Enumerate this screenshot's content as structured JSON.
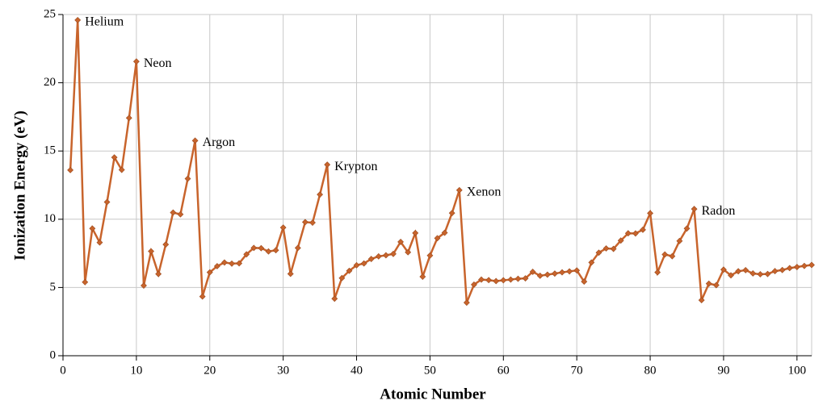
{
  "chart_data": {
    "type": "line",
    "xlabel": "Atomic Number",
    "ylabel": "Ionization Energy (eV)",
    "x": [
      1,
      2,
      3,
      4,
      5,
      6,
      7,
      8,
      9,
      10,
      11,
      12,
      13,
      14,
      15,
      16,
      17,
      18,
      19,
      20,
      21,
      22,
      23,
      24,
      25,
      26,
      27,
      28,
      29,
      30,
      31,
      32,
      33,
      34,
      35,
      36,
      37,
      38,
      39,
      40,
      41,
      42,
      43,
      44,
      45,
      46,
      47,
      48,
      49,
      50,
      51,
      52,
      53,
      54,
      55,
      56,
      57,
      58,
      59,
      60,
      61,
      62,
      63,
      64,
      65,
      66,
      67,
      68,
      69,
      70,
      71,
      72,
      73,
      74,
      75,
      76,
      77,
      78,
      79,
      80,
      81,
      82,
      83,
      84,
      85,
      86,
      87,
      88,
      89,
      90,
      91,
      92,
      93,
      94,
      95,
      96,
      97,
      98,
      99,
      100,
      101,
      102
    ],
    "values": [
      13.6,
      24.59,
      5.39,
      9.32,
      8.3,
      11.26,
      14.53,
      13.62,
      17.42,
      21.56,
      5.14,
      7.65,
      5.99,
      8.15,
      10.49,
      10.36,
      12.97,
      15.76,
      4.34,
      6.11,
      6.56,
      6.83,
      6.75,
      6.77,
      7.43,
      7.9,
      7.88,
      7.64,
      7.73,
      9.39,
      6.0,
      7.9,
      9.79,
      9.75,
      11.81,
      14.0,
      4.18,
      5.69,
      6.22,
      6.63,
      6.76,
      7.09,
      7.28,
      7.36,
      7.46,
      8.34,
      7.58,
      8.99,
      5.79,
      7.34,
      8.61,
      9.01,
      10.45,
      12.13,
      3.89,
      5.21,
      5.58,
      5.54,
      5.47,
      5.53,
      5.58,
      5.64,
      5.67,
      6.15,
      5.86,
      5.94,
      6.02,
      6.11,
      6.18,
      6.25,
      5.43,
      6.83,
      7.55,
      7.86,
      7.83,
      8.44,
      8.97,
      8.96,
      9.23,
      10.44,
      6.11,
      7.42,
      7.29,
      8.41,
      9.32,
      10.75,
      4.07,
      5.28,
      5.17,
      6.31,
      5.89,
      6.19,
      6.27,
      6.03,
      5.97,
      5.99,
      6.2,
      6.28,
      6.42,
      6.5,
      6.58,
      6.65
    ],
    "color": "#c8642c",
    "annotations": [
      {
        "text": "Helium",
        "x": 2
      },
      {
        "text": "Neon",
        "x": 10
      },
      {
        "text": "Argon",
        "x": 18
      },
      {
        "text": "Krypton",
        "x": 36
      },
      {
        "text": "Xenon",
        "x": 54
      },
      {
        "text": "Radon",
        "x": 86
      }
    ],
    "xlim": [
      0,
      102
    ],
    "xticks": [
      0,
      10,
      20,
      30,
      40,
      50,
      60,
      70,
      80,
      90,
      100
    ],
    "ylim": [
      0,
      25
    ],
    "yticks": [
      0,
      5,
      10,
      15,
      20,
      25
    ],
    "grid": true
  }
}
